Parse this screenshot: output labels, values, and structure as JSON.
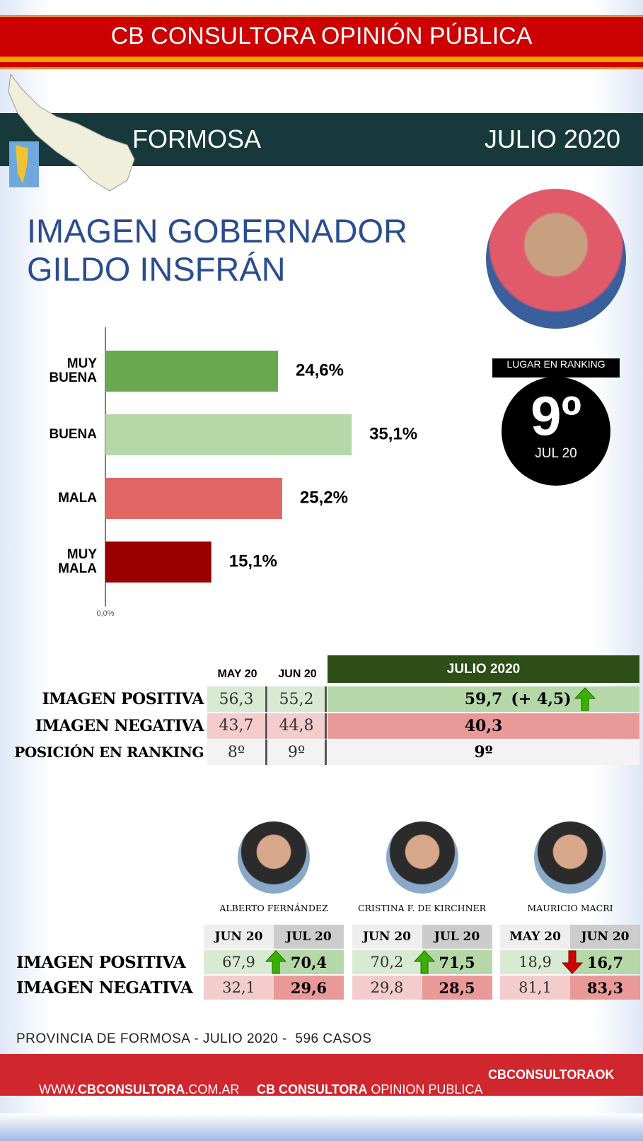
{
  "header": {
    "title": "CB CONSULTORA OPINIÓN PÚBLICA",
    "region": "FORMOSA",
    "date": "JULIO 2020"
  },
  "heading": [
    "IMAGEN GOBERNADOR",
    "GILDO INSFRÁN"
  ],
  "chart_data": {
    "type": "bar",
    "orientation": "horizontal",
    "categories": [
      "MUY BUENA",
      "BUENA",
      "MALA",
      "MUY MALA"
    ],
    "values": [
      24.6,
      35.1,
      25.2,
      15.1
    ],
    "value_labels": [
      "24,6%",
      "35,1%",
      "25,2%",
      "15,1%"
    ],
    "colors": [
      "#6aa84f",
      "#b6d7a8",
      "#e06666",
      "#990000"
    ],
    "xlim": [
      0,
      60
    ],
    "xticks": [
      {
        "value": 0,
        "label": "0,0%"
      }
    ]
  },
  "ranking": {
    "label": "LUGAR EN RANKING",
    "position": "9º",
    "date": "JUL 20"
  },
  "summary": {
    "columns": [
      "MAY 20",
      "JUN 20",
      "JULIO 2020"
    ],
    "rows": [
      {
        "label": "IMAGEN POSITIVA",
        "cells": [
          "56,3",
          "55,2",
          "59,7"
        ],
        "change": "(+ 4,5)",
        "trend": "up"
      },
      {
        "label": "IMAGEN NEGATIVA",
        "cells": [
          "43,7",
          "44,8",
          "40,3"
        ]
      },
      {
        "label": "POSICIÓN EN RANKING",
        "cells": [
          "8º",
          "9º",
          "9º"
        ]
      }
    ]
  },
  "leaders": {
    "row_labels": [
      "IMAGEN POSITIVA",
      "IMAGEN NEGATIVA"
    ],
    "people": [
      {
        "name": "ALBERTO FERNÁNDEZ",
        "columns": [
          "JUN 20",
          "JUL 20"
        ],
        "positive": [
          "67,9",
          "70,4"
        ],
        "negative": [
          "32,1",
          "29,6"
        ],
        "trend": "up"
      },
      {
        "name": "CRISTINA F. DE KIRCHNER",
        "columns": [
          "JUN 20",
          "JUL 20"
        ],
        "positive": [
          "70,2",
          "71,5"
        ],
        "negative": [
          "29,8",
          "28,5"
        ],
        "trend": "up"
      },
      {
        "name": "MAURICIO MACRI",
        "columns": [
          "MAY 20",
          "JUN 20"
        ],
        "positive": [
          "18,9",
          "16,7"
        ],
        "negative": [
          "81,1",
          "83,3"
        ],
        "trend": "down"
      }
    ]
  },
  "footer": {
    "note": "PROVINCIA DE FORMOSA - JULIO 2020 -  596 CASOS",
    "web": [
      "WWW.",
      "CBCONSULTORA",
      ".COM.AR"
    ],
    "facebook": [
      "CB CONSULTORA",
      " OPINION PUBLICA"
    ],
    "twitter": "CBCONSULTORAOK"
  }
}
